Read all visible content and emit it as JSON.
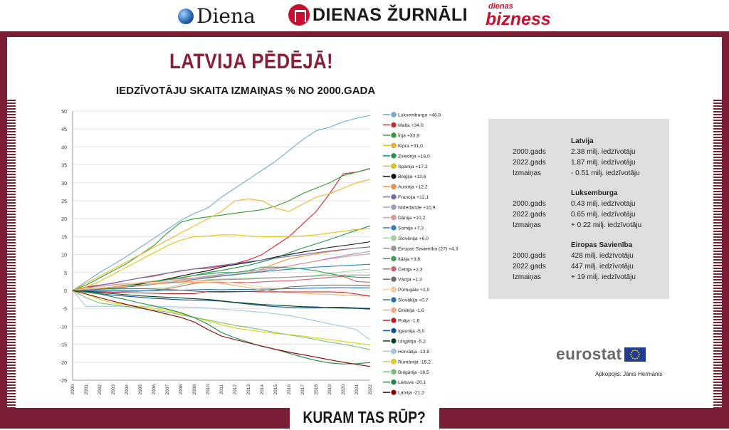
{
  "header": {
    "logo_diena": "Diena",
    "logo_dz": "DIENAS ŽURNĀLI",
    "logo_db_top": "dienas",
    "logo_db": "bizness"
  },
  "title": "LATVIJA PĒDĒJĀ!",
  "subtitle": "IEDZĪVOTĀJU SKAITA IZMAIŅAS % NO 2000.GADA",
  "info": {
    "blocks": [
      {
        "title": "Latvija",
        "rows": [
          {
            "k": "2000.gads",
            "v": "2.38 milj. iedzīvotāju"
          },
          {
            "k": "2022.gads",
            "v": "1.87 milj. iedzīvotāju"
          },
          {
            "k": "Izmaiņas",
            "v": "- 0.51 milj. iedzīvotāju"
          }
        ]
      },
      {
        "title": "Luksemburga",
        "rows": [
          {
            "k": "2000.gads",
            "v": "0.43 milj. iedzīvotāju"
          },
          {
            "k": "2022.gads",
            "v": "0.65 milj. iedzīvotāju"
          },
          {
            "k": "Izmaiņas",
            "v": "+ 0.22 milj. iedzīvotāju"
          }
        ]
      },
      {
        "title": "Eiropas Savienība",
        "rows": [
          {
            "k": "2000.gads",
            "v": "428 milj. iedzīvotāju"
          },
          {
            "k": "2022.gads",
            "v": "447 milj. iedzīvotāju"
          },
          {
            "k": "Izmaiņas",
            "v": "+ 19 milj. iedzīvotāju"
          }
        ]
      }
    ]
  },
  "eurostat": "eurostat",
  "credit": "Apkopojis: Jānis Hermanis",
  "banner": "KURAM TAS RŪP?",
  "colors": {
    "maroon": "#7a1e33",
    "title": "#8a1f3a",
    "eu_blue": "#1f3d93"
  },
  "chart_data": {
    "type": "line",
    "title": "",
    "xlabel": "",
    "ylabel": "",
    "ylim": [
      -25,
      50
    ],
    "yticks": [
      50,
      45,
      40,
      35,
      30,
      25,
      20,
      15,
      10,
      5,
      0,
      -5,
      -10,
      -15,
      -20,
      -25
    ],
    "grid": true,
    "legend": "right",
    "x": [
      "2000",
      "2001",
      "2002",
      "2003",
      "2004",
      "2005",
      "2006",
      "2007",
      "2008",
      "2009",
      "2010",
      "2011",
      "2012",
      "2013",
      "2014",
      "2015",
      "2016",
      "2017",
      "2018",
      "2019",
      "2020",
      "2021",
      "2022"
    ],
    "series": [
      {
        "name": "Luksemburga +48,8",
        "color": "#6baed6",
        "values": [
          0,
          2.5,
          5,
          7.2,
          9.5,
          12,
          14.5,
          17,
          19.5,
          21.5,
          23,
          26,
          28.5,
          31,
          33.5,
          36,
          39,
          42,
          44.5,
          45.5,
          47,
          48,
          48.8
        ]
      },
      {
        "name": "Malta +34,0",
        "color": "#d62728",
        "values": [
          0,
          1,
          1.5,
          2,
          2.8,
          3.5,
          4,
          4.8,
          5.5,
          6,
          6.2,
          6.8,
          7.5,
          8.5,
          10,
          12.5,
          15,
          18.5,
          22,
          27,
          32.5,
          33,
          34
        ]
      },
      {
        "name": "Īrija +33,9",
        "color": "#2ca02c",
        "values": [
          0,
          1.5,
          3.5,
          5.5,
          7.5,
          10,
          12.5,
          16,
          19,
          20,
          20.5,
          21,
          21.5,
          22,
          22.5,
          23.5,
          25,
          27,
          28.5,
          30,
          32,
          33,
          33.9
        ]
      },
      {
        "name": "Kipra +31,0",
        "color": "#f0b429",
        "values": [
          0,
          2,
          4,
          6,
          8,
          10,
          12,
          14,
          16,
          18,
          20,
          22,
          25,
          25.5,
          25,
          23,
          22,
          24,
          26,
          27,
          28.5,
          30,
          31
        ]
      },
      {
        "name": "Zviedrija +18,0",
        "color": "#1a9850",
        "values": [
          0,
          0.3,
          0.6,
          1,
          1.3,
          1.8,
          2.3,
          3,
          3.5,
          4.2,
          5,
          5.6,
          6.3,
          7,
          8,
          9,
          10.5,
          11.8,
          13,
          14.2,
          15.5,
          16.8,
          18
        ]
      },
      {
        "name": "Spānija +17,2",
        "color": "#e6c300",
        "values": [
          0,
          1,
          2.5,
          4.5,
          6.5,
          8.5,
          10.5,
          12.5,
          14,
          15,
          15.2,
          15.5,
          15.5,
          15.2,
          15,
          15,
          15.1,
          15.2,
          15.5,
          16,
          16.5,
          17,
          17.2
        ]
      },
      {
        "name": "Beļģija +13,6",
        "color": "#111111",
        "values": [
          0,
          0.2,
          0.5,
          0.8,
          1.2,
          1.8,
          2.5,
          3.2,
          4,
          4.8,
          5.5,
          6.5,
          7.2,
          7.8,
          8.5,
          9.3,
          10,
          10.7,
          11.3,
          12,
          12.5,
          13,
          13.6
        ]
      },
      {
        "name": "Austrija +12,2",
        "color": "#fd8d3c",
        "values": [
          0,
          0.2,
          0.6,
          1,
          1.6,
          2.2,
          2.6,
          3,
          3.3,
          3.5,
          3.7,
          4,
          4.5,
          5,
          6,
          7.5,
          8.8,
          9.5,
          10.2,
          10.8,
          11.3,
          11.8,
          12.2
        ]
      },
      {
        "name": "Francija +12,1",
        "color": "#756bb1",
        "values": [
          0,
          0.7,
          1.4,
          2.1,
          2.8,
          3.5,
          4.2,
          4.8,
          5.4,
          6,
          6.5,
          7,
          7.5,
          8,
          8.5,
          9,
          9.5,
          10,
          10.5,
          11,
          11.4,
          11.8,
          12.1
        ]
      },
      {
        "name": "Nīderlande +10,9",
        "color": "#9e9ac8",
        "values": [
          0,
          0.6,
          1.1,
          1.6,
          1.9,
          2.1,
          2.3,
          2.5,
          3,
          3.5,
          4,
          4.5,
          5,
          5.4,
          5.8,
          6.3,
          6.8,
          7.5,
          8.2,
          9,
          9.6,
          10.3,
          10.9
        ]
      },
      {
        "name": "Dānija +10,2",
        "color": "#e7969c",
        "values": [
          0,
          0.3,
          0.6,
          0.9,
          1.2,
          1.5,
          1.9,
          2.3,
          2.9,
          3.4,
          3.8,
          4.2,
          4.5,
          4.9,
          5.4,
          6,
          6.8,
          7.5,
          8.2,
          8.8,
          9.3,
          9.8,
          10.2
        ]
      },
      {
        "name": "Somija +7,3",
        "color": "#3182bd",
        "values": [
          0,
          0.2,
          0.4,
          0.7,
          1,
          1.3,
          1.7,
          2.1,
          2.6,
          3.1,
          3.5,
          4,
          4.4,
          4.8,
          5.2,
          5.6,
          5.9,
          6.2,
          6.5,
          6.7,
          6.9,
          7.1,
          7.3
        ]
      },
      {
        "name": "Slovēnija +6,0",
        "color": "#a1d99b",
        "values": [
          0,
          0.1,
          0.2,
          0.3,
          0.4,
          0.5,
          0.6,
          0.8,
          1.7,
          2.6,
          3,
          3.2,
          3.3,
          3.4,
          3.5,
          3.6,
          3.7,
          3.8,
          4.2,
          4.7,
          5.2,
          5.6,
          6
        ]
      },
      {
        "name": "Eiropas Savienība (27) +4,3",
        "color": "#969696",
        "values": [
          0,
          0.3,
          0.6,
          0.9,
          1.2,
          1.5,
          1.8,
          2.1,
          2.4,
          2.7,
          2.9,
          3,
          3.1,
          3.2,
          3.4,
          3.5,
          3.7,
          3.9,
          4,
          4.2,
          4.3,
          4.3,
          4.3
        ]
      },
      {
        "name": "Itālija +3,6",
        "color": "#31a354",
        "values": [
          0,
          0.1,
          0.3,
          0.7,
          1.3,
          2,
          2.5,
          3,
          3.6,
          4.2,
          4.6,
          5,
          5,
          5.5,
          6.5,
          6.5,
          6.3,
          6,
          5.5,
          4.7,
          4,
          3.7,
          3.6
        ]
      },
      {
        "name": "Čehija +2,3",
        "color": "#d6616b",
        "values": [
          0,
          -0.1,
          -0.3,
          -0.4,
          -0.3,
          -0.2,
          0,
          0.5,
          1.2,
          2,
          2.3,
          2.2,
          2.3,
          2.2,
          2.4,
          2.6,
          2.7,
          3,
          3.3,
          3.7,
          3.9,
          2.5,
          2.3
        ]
      },
      {
        "name": "Vācija +1,3",
        "color": "#6b6b6b",
        "values": [
          0,
          0.2,
          0.4,
          0.5,
          0.5,
          0.5,
          0.4,
          0.3,
          0.1,
          -0.2,
          -0.4,
          -0.5,
          -0.4,
          -0.3,
          -0.1,
          0.3,
          1,
          1.2,
          1.4,
          1.5,
          1.5,
          1.4,
          1.3
        ]
      },
      {
        "name": "Portugāle +1,0",
        "color": "#fdd0a2",
        "values": [
          0,
          0.5,
          1,
          1.4,
          1.8,
          2.1,
          2.3,
          2.5,
          2.6,
          2.7,
          2.7,
          2.5,
          2.1,
          1.5,
          1,
          0.7,
          0.5,
          0.4,
          0.4,
          0.5,
          0.7,
          0.9,
          1
        ]
      },
      {
        "name": "Slovākija +0,7",
        "color": "#2171b5",
        "values": [
          0,
          -0.1,
          -0.1,
          -0.1,
          -0.1,
          -0.1,
          -0.1,
          0,
          0.1,
          0.2,
          0.3,
          0.2,
          0.3,
          0.3,
          0.4,
          0.4,
          0.5,
          0.6,
          0.7,
          0.8,
          0.8,
          0.7,
          0.7
        ]
      },
      {
        "name": "Grieķija -1,6",
        "color": "#fdae6b",
        "values": [
          0,
          0.3,
          0.6,
          0.9,
          1.2,
          1.5,
          1.8,
          2,
          2.2,
          2.3,
          2.3,
          2,
          1.4,
          0.8,
          0.2,
          -0.3,
          -0.6,
          -0.8,
          -1,
          -1.1,
          -1.3,
          -1.5,
          -1.6
        ]
      },
      {
        "name": "Polija -1,6",
        "color": "#cb181d",
        "values": [
          0,
          -0.3,
          -0.4,
          -0.5,
          -0.6,
          -0.7,
          -0.8,
          -0.9,
          -0.9,
          -0.9,
          -0.3,
          -0.3,
          -0.3,
          -0.3,
          -0.4,
          -0.4,
          -0.4,
          -0.4,
          -0.4,
          -0.4,
          -0.5,
          -1,
          -1.6
        ]
      },
      {
        "name": "Igaunija -5,0",
        "color": "#08519c",
        "values": [
          0,
          -0.5,
          -0.9,
          -1.3,
          -1.6,
          -1.9,
          -2.2,
          -2.4,
          -2.6,
          -2.7,
          -2.8,
          -3,
          -3.4,
          -3.8,
          -4.2,
          -4.5,
          -4.7,
          -4.8,
          -4.8,
          -4.7,
          -4.7,
          -4.9,
          -5
        ]
      },
      {
        "name": "Ungārija -5,2",
        "color": "#00441b",
        "values": [
          0,
          -0.3,
          -0.6,
          -0.9,
          -1.2,
          -1.5,
          -1.7,
          -1.9,
          -2.1,
          -2.3,
          -2.5,
          -2.9,
          -3.3,
          -3.6,
          -3.9,
          -4.1,
          -4.3,
          -4.5,
          -4.6,
          -4.8,
          -4.9,
          -5,
          -5.2
        ]
      },
      {
        "name": "Horvātija -13,8",
        "color": "#9ecae1",
        "values": [
          0,
          -4.5,
          -4.4,
          -4.4,
          -4.4,
          -4.4,
          -4.4,
          -4.5,
          -4.6,
          -4.7,
          -4.9,
          -5.2,
          -5.5,
          -5.8,
          -6.1,
          -6.5,
          -7,
          -7.7,
          -8.5,
          -9.3,
          -10,
          -11,
          -13.8
        ]
      },
      {
        "name": "Rumānija -15,2",
        "color": "#e0d000",
        "values": [
          0,
          -1,
          -2.5,
          -3.5,
          -4,
          -4.5,
          -5,
          -5.5,
          -6.5,
          -7.5,
          -8.5,
          -9.5,
          -10.5,
          -11,
          -11.5,
          -12,
          -12.3,
          -12.7,
          -13.2,
          -13.7,
          -14.2,
          -14.7,
          -15.2
        ]
      },
      {
        "name": "Bulgārija -16,5",
        "color": "#74c476",
        "values": [
          0,
          -2,
          -3.5,
          -4,
          -4.5,
          -5,
          -5.5,
          -6,
          -6.8,
          -7.5,
          -8.2,
          -9,
          -9.7,
          -10.3,
          -11,
          -11.7,
          -12.4,
          -13,
          -13.7,
          -14.4,
          -15,
          -15.7,
          -16.5
        ]
      },
      {
        "name": "Lietuva -20,1",
        "color": "#238b45",
        "values": [
          0,
          -0.5,
          -1,
          -1.8,
          -2.6,
          -3.5,
          -4.3,
          -5.2,
          -6.2,
          -7.6,
          -9.4,
          -11.7,
          -13.2,
          -14.4,
          -15.6,
          -16.4,
          -17.5,
          -18.6,
          -19.5,
          -20.2,
          -20.5,
          -20.4,
          -20.1
        ]
      },
      {
        "name": "Latvija -21,2",
        "color": "#8b0000",
        "values": [
          0,
          -1,
          -2,
          -3,
          -3.9,
          -4.8,
          -5.7,
          -6.6,
          -7.5,
          -8.8,
          -10.9,
          -12.7,
          -13.7,
          -14.6,
          -15.5,
          -16.4,
          -17.2,
          -17.9,
          -18.6,
          -19.3,
          -20,
          -20.6,
          -21.2
        ]
      }
    ]
  }
}
